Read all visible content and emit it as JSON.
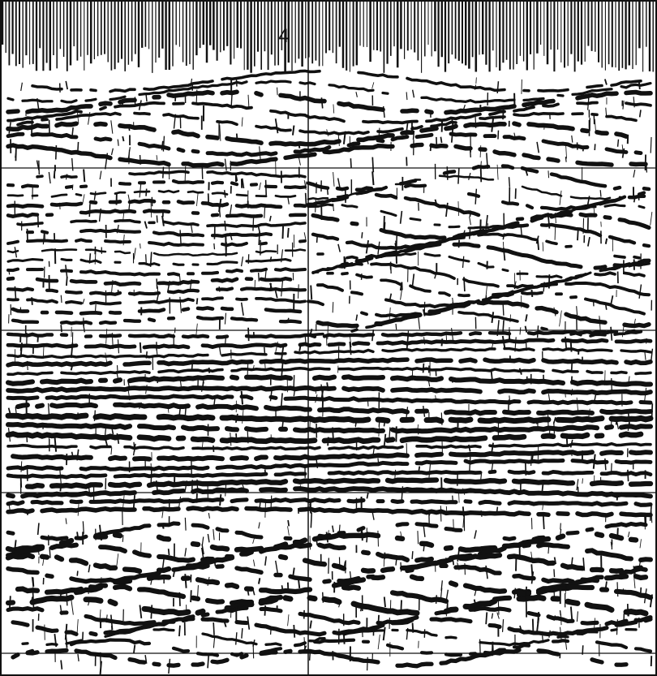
{
  "figure": {
    "annotation_label": "4",
    "ink_color": "#111111",
    "paper_color": "#ffffff"
  }
}
